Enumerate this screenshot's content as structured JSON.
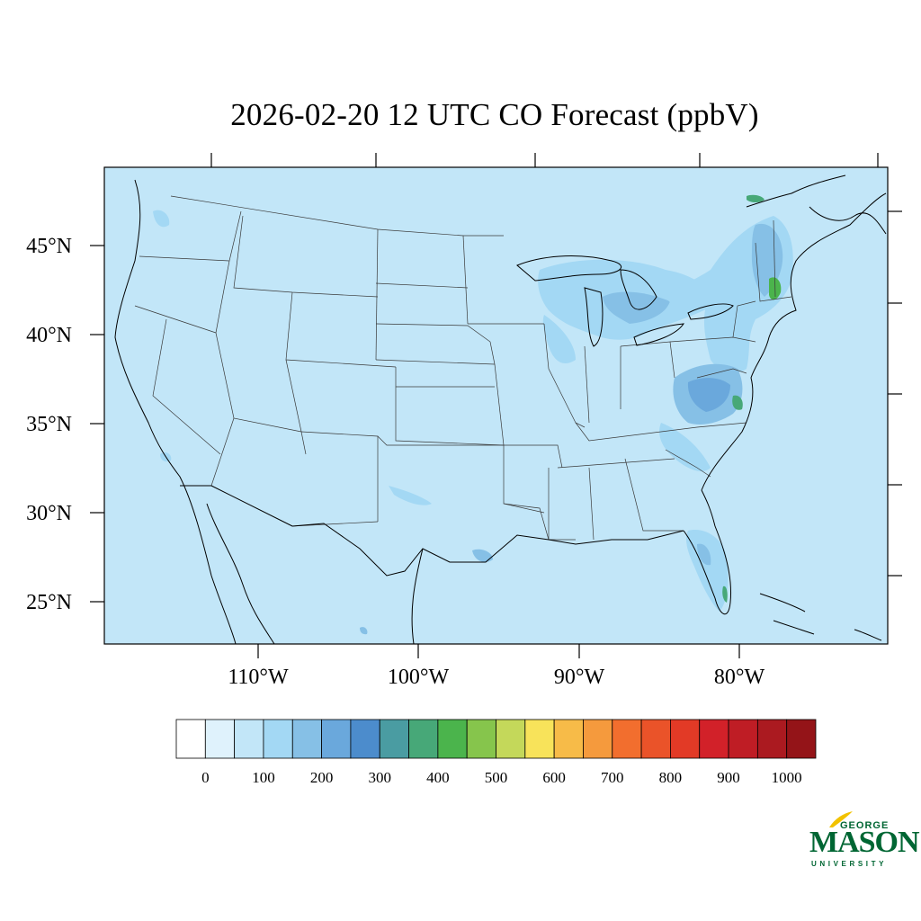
{
  "title": "2026-02-20 12 UTC CO Forecast (ppbV)",
  "map": {
    "lat_labels": [
      "45°N",
      "40°N",
      "35°N",
      "30°N",
      "25°N"
    ],
    "lon_labels": [
      "110°W",
      "100°W",
      "90°W",
      "80°W"
    ],
    "background_color": "#c2e6f8"
  },
  "colorbar": {
    "tick_labels": [
      "0",
      "100",
      "200",
      "300",
      "400",
      "500",
      "600",
      "700",
      "800",
      "900",
      "1000"
    ],
    "colors": [
      "#ffffff",
      "#dff2fc",
      "#c2e6f8",
      "#a3d8f4",
      "#86c0e6",
      "#6aa8dc",
      "#4c8ccc",
      "#4a9ca2",
      "#47a878",
      "#4bb44c",
      "#86c54c",
      "#c4d85a",
      "#f8e35a",
      "#f7bb48",
      "#f59a3d",
      "#f26e2e",
      "#ea5329",
      "#e23a26",
      "#d22129",
      "#bf1d25",
      "#ab1a20",
      "#941418"
    ]
  },
  "logo": {
    "line1": "GEORGE",
    "line2": "MASON",
    "line3": "UNIVERSITY",
    "color": "#006633",
    "accent": "#f2c200"
  }
}
